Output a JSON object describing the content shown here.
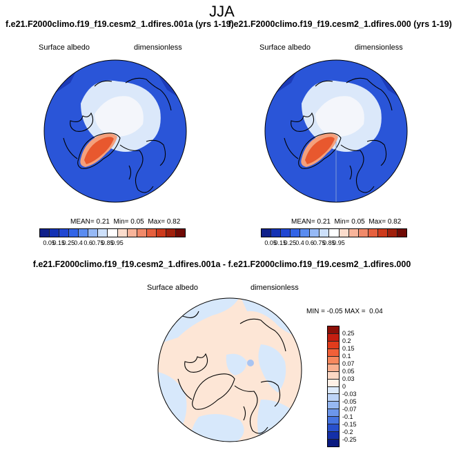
{
  "season": "JJA",
  "panels": [
    {
      "title": "f.e21.F2000climo.f19_f19.cesm2_1.dfires.001a (yrs 1-19)",
      "variable": "Surface albedo",
      "units": "dimensionless",
      "stats": {
        "mean_label": "MEAN=",
        "mean": "0.21",
        "min_label": "Min=",
        "min": "0.05",
        "max_label": "Max=",
        "max": "0.82"
      }
    },
    {
      "title": "f.e21.F2000climo.f19_f19.cesm2_1.dfires.000 (yrs 1-19)",
      "variable": "Surface albedo",
      "units": "dimensionless",
      "stats": {
        "mean_label": "MEAN=",
        "mean": "0.21",
        "min_label": "Min=",
        "min": "0.05",
        "max_label": "Max=",
        "max": "0.82"
      }
    }
  ],
  "diff_panel": {
    "title": "f.e21.F2000climo.f19_f19.cesm2_1.dfires.001a - f.e21.F2000climo.f19_f19.cesm2_1.dfires.000",
    "variable": "Surface albedo",
    "units": "dimensionless",
    "stats": {
      "min_label": "MIN =",
      "min": "-0.05",
      "max_label": "MAX =",
      "max": "0.04"
    }
  },
  "colorbar_abs": {
    "labels": [
      "0.05",
      "0.15",
      "0.25",
      "0.4",
      "0.6",
      "0.75",
      "0.85",
      "0.95"
    ],
    "colors": [
      "#10208a",
      "#1432b4",
      "#2046d2",
      "#3264e6",
      "#5a8cf0",
      "#96b9f5",
      "#cde0fa",
      "#ffffff",
      "#fbdccc",
      "#f8b49a",
      "#f08a6a",
      "#e6603e",
      "#cd3a1c",
      "#a0200c",
      "#700a05"
    ]
  },
  "colorbar_diff": {
    "labels": [
      "0.25",
      "0.2",
      "0.15",
      "0.1",
      "0.07",
      "0.05",
      "0.03",
      "0",
      "-0.03",
      "-0.05",
      "-0.07",
      "-0.1",
      "-0.15",
      "-0.2",
      "-0.25"
    ],
    "colors": [
      "#8c1008",
      "#c41e10",
      "#e03c1c",
      "#f26038",
      "#f7885e",
      "#fab090",
      "#fdd8c4",
      "#fff0e6",
      "#ddeafc",
      "#bdd4f8",
      "#96b8f2",
      "#6c96ea",
      "#4674e0",
      "#2850cc",
      "#1430a8",
      "#0a1a80"
    ]
  },
  "map_colors": {
    "ocean": "#2a55d8",
    "ocean_dark": "#1b3ab8",
    "ice": "#dbe8fa",
    "ice_pale": "#f4f6fb",
    "greenland": "#e8582e",
    "greenland_edge": "#f4a07c",
    "diff_base": "#fde6d6",
    "diff_neg": "#d7e8fb",
    "coast": "#000000"
  }
}
